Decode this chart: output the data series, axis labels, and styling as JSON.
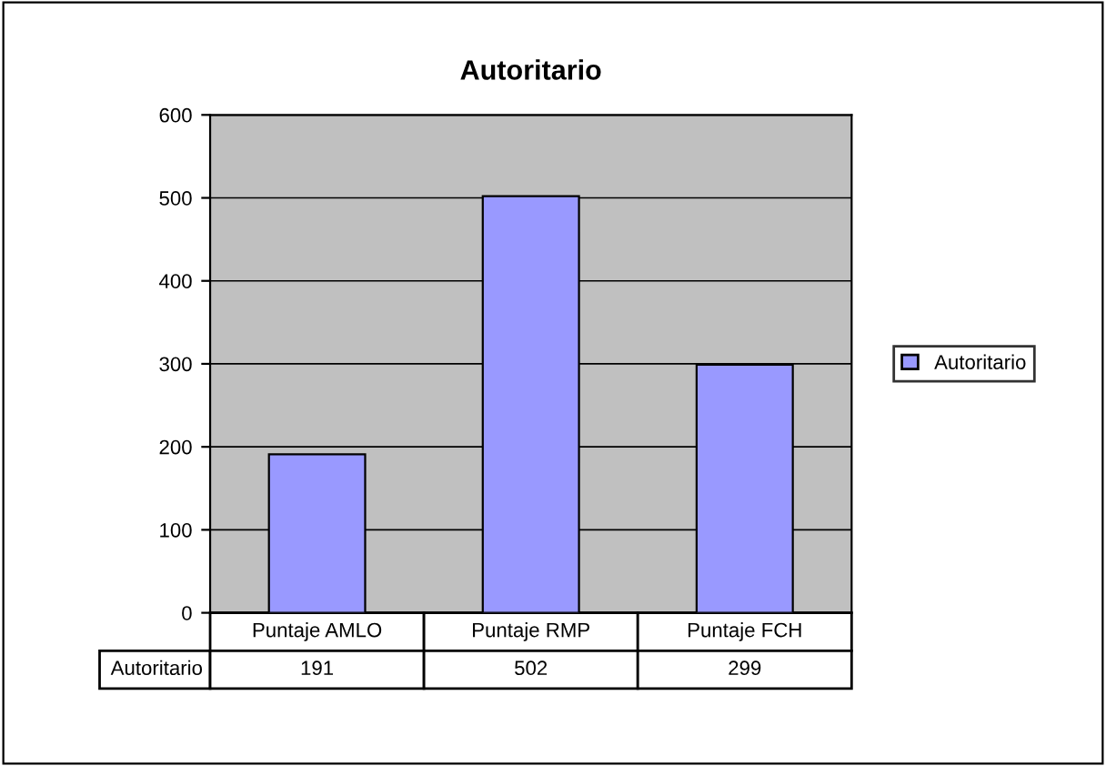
{
  "chart_data": {
    "type": "bar",
    "title": "Autoritario",
    "categories": [
      "Puntaje AMLO",
      "Puntaje RMP",
      "Puntaje FCH"
    ],
    "series": [
      {
        "name": "Autoritario",
        "color": "#9999ff",
        "values": [
          191,
          502,
          299
        ]
      }
    ],
    "ylim": [
      0,
      600
    ],
    "yticks": [
      0,
      100,
      200,
      300,
      400,
      500,
      600
    ],
    "grid": "y",
    "legend": "right",
    "data_labels": true
  }
}
